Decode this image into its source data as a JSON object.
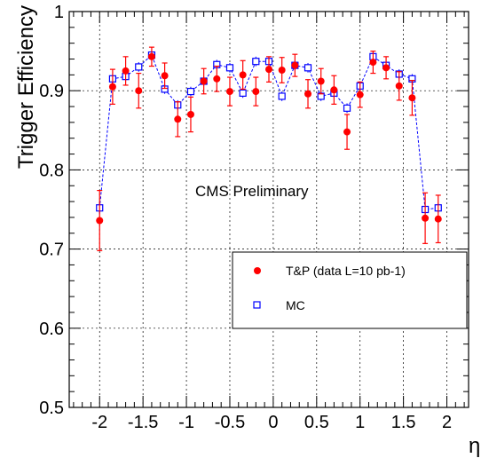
{
  "chart_data": {
    "type": "scatter",
    "title": "",
    "xlabel": "η",
    "ylabel": "Trigger Efficiency",
    "annotation": "CMS Preliminary",
    "xlim": [
      -2.35,
      2.25
    ],
    "ylim": [
      0.5,
      1.0
    ],
    "x_ticks": [
      -2,
      -1.5,
      -1,
      -0.5,
      0,
      0.5,
      1,
      1.5,
      2
    ],
    "x_tick_labels": [
      "-2",
      "-1.5",
      "-1",
      "-0.5",
      "0",
      "0.5",
      "1",
      "1.5",
      "2"
    ],
    "y_ticks": [
      0.5,
      0.6,
      0.7,
      0.8,
      0.9,
      1.0
    ],
    "y_tick_labels": [
      "0.5",
      "0.6",
      "0.7",
      "0.8",
      "0.9",
      "1"
    ],
    "grid": true,
    "legend_position": "right",
    "series": [
      {
        "name": "T&P (data L=10 pb-1)",
        "color": "#ff0000",
        "marker": "filled-circle",
        "x": [
          -2.0,
          -1.85,
          -1.7,
          -1.55,
          -1.4,
          -1.25,
          -1.1,
          -0.95,
          -0.8,
          -0.65,
          -0.5,
          -0.35,
          -0.2,
          -0.05,
          0.1,
          0.25,
          0.4,
          0.55,
          0.7,
          0.85,
          1.0,
          1.15,
          1.3,
          1.45,
          1.6,
          1.75,
          1.9
        ],
        "y": [
          0.736,
          0.905,
          0.925,
          0.9,
          0.943,
          0.919,
          0.864,
          0.87,
          0.912,
          0.915,
          0.899,
          0.92,
          0.899,
          0.927,
          0.926,
          0.932,
          0.896,
          0.912,
          0.901,
          0.848,
          0.895,
          0.936,
          0.929,
          0.906,
          0.891,
          0.739,
          0.738
        ],
        "yerr": [
          0.038,
          0.022,
          0.018,
          0.022,
          0.012,
          0.016,
          0.022,
          0.022,
          0.016,
          0.016,
          0.018,
          0.018,
          0.018,
          0.016,
          0.016,
          0.014,
          0.018,
          0.016,
          0.018,
          0.022,
          0.016,
          0.014,
          0.014,
          0.018,
          0.022,
          0.032,
          0.03
        ]
      },
      {
        "name": "MC",
        "color": "#0000ff",
        "marker": "open-square",
        "x": [
          -2.0,
          -1.85,
          -1.7,
          -1.55,
          -1.4,
          -1.25,
          -1.1,
          -0.95,
          -0.8,
          -0.65,
          -0.5,
          -0.35,
          -0.2,
          -0.05,
          0.1,
          0.25,
          0.4,
          0.55,
          0.7,
          0.85,
          1.0,
          1.15,
          1.3,
          1.45,
          1.6,
          1.75,
          1.9
        ],
        "y": [
          0.752,
          0.915,
          0.918,
          0.93,
          0.945,
          0.902,
          0.882,
          0.899,
          0.912,
          0.933,
          0.929,
          0.897,
          0.937,
          0.937,
          0.893,
          0.932,
          0.929,
          0.893,
          0.897,
          0.878,
          0.906,
          0.943,
          0.932,
          0.921,
          0.915,
          0.75,
          0.752
        ],
        "yerr": [
          0.008,
          0.006,
          0.006,
          0.006,
          0.006,
          0.006,
          0.006,
          0.006,
          0.006,
          0.006,
          0.006,
          0.006,
          0.006,
          0.006,
          0.006,
          0.006,
          0.006,
          0.006,
          0.006,
          0.006,
          0.006,
          0.006,
          0.006,
          0.006,
          0.006,
          0.006,
          0.006
        ]
      }
    ]
  }
}
